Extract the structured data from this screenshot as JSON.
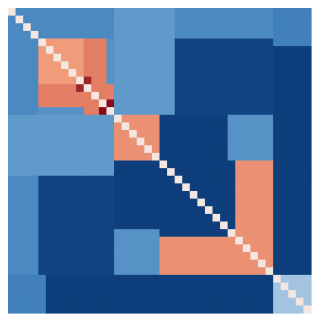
{
  "chart_data": {
    "type": "heatmap",
    "symmetric": true,
    "title": "",
    "xlabel": "",
    "ylabel": "",
    "grid": false,
    "legend": "none",
    "axes_visible": false,
    "rows": 40,
    "cols": 40,
    "value_range": [
      -1,
      1
    ],
    "colormap": {
      "name": "RdBu_r",
      "stops": [
        [
          -1.0,
          "#08306b"
        ],
        [
          -0.6,
          "#2166ac"
        ],
        [
          -0.25,
          "#6ba3d0"
        ],
        [
          0.0,
          "#f4f6f8"
        ],
        [
          0.25,
          "#f4a582"
        ],
        [
          0.6,
          "#d6604d"
        ],
        [
          1.0,
          "#7a0014"
        ]
      ]
    },
    "diagonal_value": 0.05,
    "base_value": -0.35,
    "regions": [
      {
        "rows": [
          0,
          12
        ],
        "cols": [
          0,
          12
        ],
        "value": 0.3
      },
      {
        "rows": [
          10,
          13
        ],
        "cols": [
          0,
          16
        ],
        "value": 0.45
      },
      {
        "rows": [
          0,
          16
        ],
        "cols": [
          10,
          13
        ],
        "value": 0.45
      },
      {
        "rows": [
          12,
          14
        ],
        "cols": [
          12,
          14
        ],
        "value": 0.95
      },
      {
        "rows": [
          9,
          11
        ],
        "cols": [
          9,
          11
        ],
        "value": 0.85
      },
      {
        "rows": [
          14,
          20
        ],
        "cols": [
          14,
          20
        ],
        "value": 0.35
      },
      {
        "rows": [
          20,
          34
        ],
        "cols": [
          20,
          34
        ],
        "value": 0.2
      },
      {
        "rows": [
          20,
          34
        ],
        "cols": [
          30,
          35
        ],
        "value": 0.35
      },
      {
        "rows": [
          30,
          35
        ],
        "cols": [
          20,
          34
        ],
        "value": 0.35
      },
      {
        "rows": [
          0,
          14
        ],
        "cols": [
          16,
          35
        ],
        "value": -0.85
      },
      {
        "rows": [
          16,
          35
        ],
        "cols": [
          0,
          14
        ],
        "value": -0.85
      },
      {
        "rows": [
          14,
          30
        ],
        "cols": [
          20,
          29
        ],
        "value": -0.9
      },
      {
        "rows": [
          20,
          29
        ],
        "cols": [
          14,
          30
        ],
        "value": -0.9
      },
      {
        "rows": [
          35,
          40
        ],
        "cols": [
          0,
          35
        ],
        "value": -0.9
      },
      {
        "rows": [
          0,
          35
        ],
        "cols": [
          35,
          40
        ],
        "value": -0.9
      },
      {
        "rows": [
          35,
          40
        ],
        "cols": [
          35,
          40
        ],
        "value": -0.15
      },
      {
        "rows": [
          0,
          5
        ],
        "cols": [
          35,
          40
        ],
        "value": -0.45
      },
      {
        "rows": [
          35,
          40
        ],
        "cols": [
          0,
          5
        ],
        "value": -0.45
      },
      {
        "rows": [
          0,
          4
        ],
        "cols": [
          0,
          35
        ],
        "value": -0.4
      },
      {
        "rows": [
          0,
          35
        ],
        "cols": [
          0,
          4
        ],
        "value": -0.4
      },
      {
        "rows": [
          14,
          22
        ],
        "cols": [
          0,
          14
        ],
        "value": -0.3
      },
      {
        "rows": [
          0,
          14
        ],
        "cols": [
          14,
          22
        ],
        "value": -0.3
      }
    ]
  }
}
